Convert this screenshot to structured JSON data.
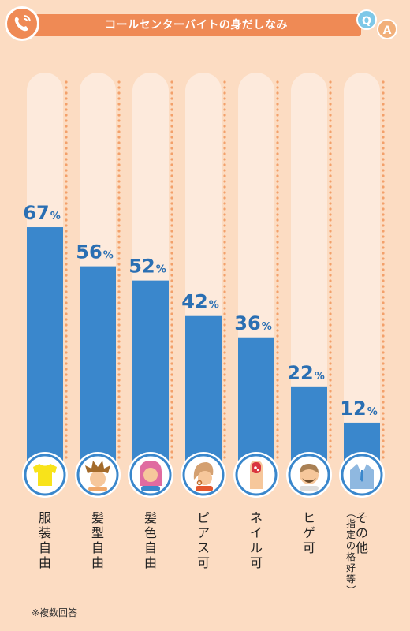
{
  "header": {
    "title": "コールセンターバイトの身だしなみ",
    "q_label": "Q",
    "a_label": "A",
    "phone_icon": "phone-icon"
  },
  "colors": {
    "background": "#fcdcc2",
    "track": "#fdeadc",
    "bar": "#3a87cc",
    "accent": "#ef8a55",
    "dots": "#f3a06a",
    "label_text": "#2a6fb3"
  },
  "chart_data": {
    "type": "bar",
    "orientation": "vertical",
    "categories": [
      "服装自由",
      "髪型自由",
      "髪色自由",
      "ピアス可",
      "ネイル可",
      "ヒゲ可",
      "その他"
    ],
    "category_notes": [
      "",
      "",
      "",
      "",
      "",
      "",
      "（指定の格好等）"
    ],
    "values": [
      67,
      56,
      52,
      42,
      36,
      22,
      12
    ],
    "unit": "%",
    "icons": [
      "shirt-icon",
      "spiky-hair-icon",
      "colored-hair-icon",
      "pierced-ear-icon",
      "nail-icon",
      "beard-icon",
      "suit-icon"
    ],
    "ylim": [
      0,
      100
    ],
    "grid": false,
    "legend": "none"
  },
  "footnote": "※複数回答"
}
